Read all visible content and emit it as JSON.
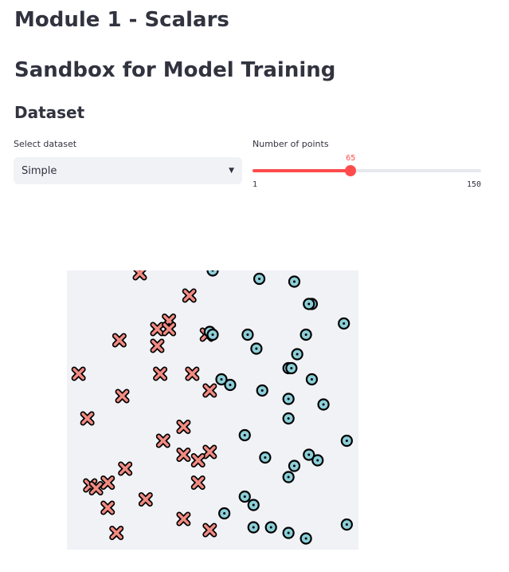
{
  "header": {
    "title": "Module 1 - Scalars",
    "subtitle": "Sandbox for Model Training",
    "section": "Dataset"
  },
  "dataset_select": {
    "label": "Select dataset",
    "value": "Simple"
  },
  "points_slider": {
    "label": "Number of points",
    "value": 65,
    "min": 1,
    "max": 150,
    "value_label": "65",
    "min_label": "1",
    "max_label": "150"
  },
  "colors": {
    "accent": "#ff4b4b",
    "plot_bg": "#f0f2f6",
    "class0": "#f28b82",
    "class1": "#8ccfd8"
  },
  "chart_data": {
    "type": "scatter",
    "title": "",
    "xlabel": "",
    "ylabel": "",
    "xlim": [
      0,
      1
    ],
    "ylim": [
      0,
      1
    ],
    "grid": false,
    "legend": "none",
    "series": [
      {
        "marker": "x",
        "points": [
          [
            0.25,
            0.99
          ],
          [
            0.42,
            0.91
          ],
          [
            0.35,
            0.82
          ],
          [
            0.31,
            0.79
          ],
          [
            0.35,
            0.79
          ],
          [
            0.48,
            0.77
          ],
          [
            0.18,
            0.75
          ],
          [
            0.31,
            0.73
          ],
          [
            0.04,
            0.63
          ],
          [
            0.32,
            0.63
          ],
          [
            0.43,
            0.63
          ],
          [
            0.49,
            0.57
          ],
          [
            0.19,
            0.55
          ],
          [
            0.07,
            0.47
          ],
          [
            0.4,
            0.44
          ],
          [
            0.33,
            0.39
          ],
          [
            0.4,
            0.34
          ],
          [
            0.49,
            0.35
          ],
          [
            0.45,
            0.32
          ],
          [
            0.2,
            0.29
          ],
          [
            0.14,
            0.24
          ],
          [
            0.08,
            0.23
          ],
          [
            0.1,
            0.22
          ],
          [
            0.45,
            0.24
          ],
          [
            0.27,
            0.18
          ],
          [
            0.14,
            0.15
          ],
          [
            0.4,
            0.11
          ],
          [
            0.49,
            0.07
          ],
          [
            0.17,
            0.06
          ]
        ]
      },
      {
        "marker": "o",
        "points": [
          [
            0.5,
            1.0
          ],
          [
            0.66,
            0.97
          ],
          [
            0.78,
            0.96
          ],
          [
            0.84,
            0.88
          ],
          [
            0.83,
            0.88
          ],
          [
            0.49,
            0.78
          ],
          [
            0.5,
            0.77
          ],
          [
            0.62,
            0.77
          ],
          [
            0.82,
            0.77
          ],
          [
            0.95,
            0.81
          ],
          [
            0.65,
            0.72
          ],
          [
            0.79,
            0.7
          ],
          [
            0.76,
            0.65
          ],
          [
            0.77,
            0.65
          ],
          [
            0.84,
            0.61
          ],
          [
            0.53,
            0.61
          ],
          [
            0.56,
            0.59
          ],
          [
            0.67,
            0.57
          ],
          [
            0.76,
            0.54
          ],
          [
            0.88,
            0.52
          ],
          [
            0.76,
            0.47
          ],
          [
            0.61,
            0.41
          ],
          [
            0.96,
            0.39
          ],
          [
            0.68,
            0.33
          ],
          [
            0.83,
            0.34
          ],
          [
            0.86,
            0.32
          ],
          [
            0.78,
            0.3
          ],
          [
            0.76,
            0.26
          ],
          [
            0.61,
            0.19
          ],
          [
            0.64,
            0.16
          ],
          [
            0.54,
            0.13
          ],
          [
            0.64,
            0.08
          ],
          [
            0.7,
            0.08
          ],
          [
            0.76,
            0.06
          ],
          [
            0.82,
            0.04
          ],
          [
            0.96,
            0.09
          ]
        ]
      }
    ]
  }
}
